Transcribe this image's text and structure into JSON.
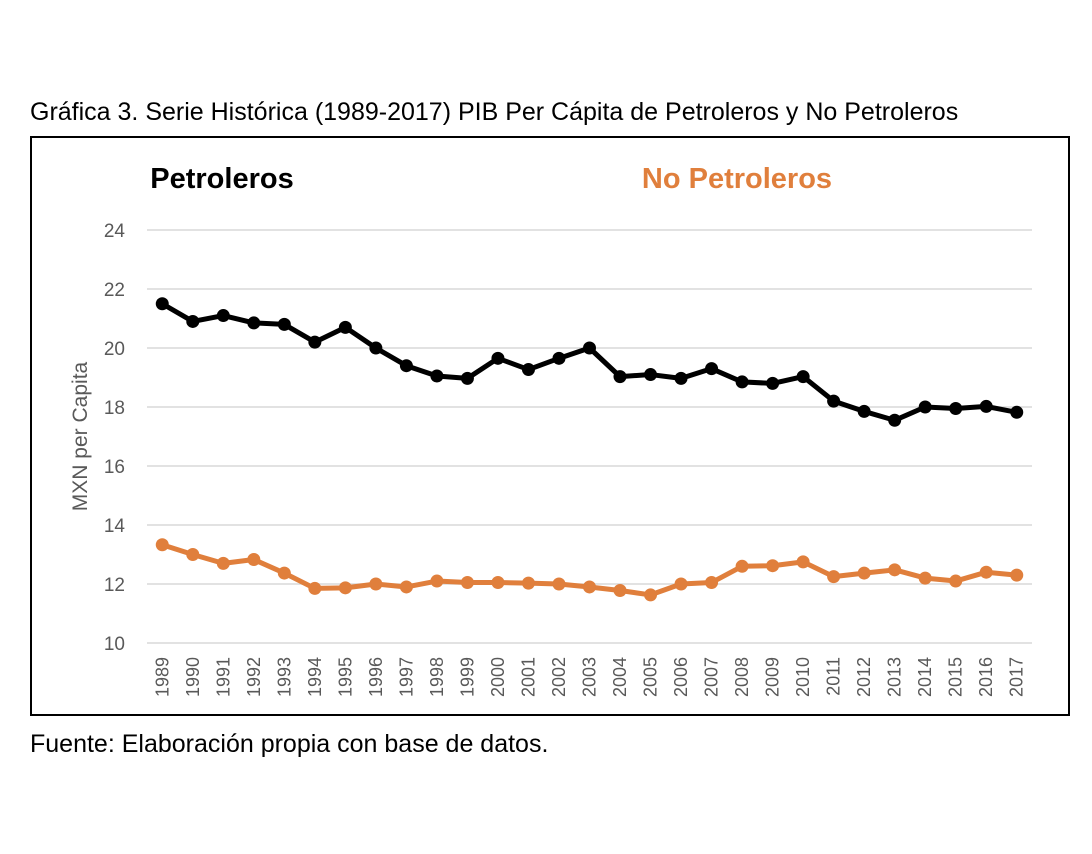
{
  "figure": {
    "title": "Gráfica 3. Serie Histórica (1989-2017) PIB Per Cápita de Petroleros y No Petroleros",
    "source": "Fuente: Elaboración propia con base de datos."
  },
  "chart_data": {
    "type": "line",
    "title": "",
    "xlabel": "",
    "ylabel": "MXN per Capita",
    "ylim": [
      10,
      24
    ],
    "yticks": [
      10,
      12,
      14,
      16,
      18,
      20,
      22,
      24
    ],
    "grid": true,
    "legend_position": "top",
    "categories": [
      "1989",
      "1990",
      "1991",
      "1992",
      "1993",
      "1994",
      "1995",
      "1996",
      "1997",
      "1998",
      "1999",
      "2000",
      "2001",
      "2002",
      "2003",
      "2004",
      "2005",
      "2006",
      "2007",
      "2008",
      "2009",
      "2010",
      "2011",
      "2012",
      "2013",
      "2014",
      "2015",
      "2016",
      "2017"
    ],
    "series": [
      {
        "name": "Petroleros",
        "color": "#000000",
        "values": [
          21.5,
          20.9,
          21.1,
          20.85,
          20.8,
          20.2,
          20.7,
          20.0,
          19.4,
          19.05,
          18.97,
          19.65,
          19.27,
          19.65,
          20.0,
          19.03,
          19.1,
          18.97,
          19.3,
          18.85,
          18.8,
          19.03,
          18.2,
          17.85,
          17.55,
          18.0,
          17.95,
          18.02,
          17.82
        ]
      },
      {
        "name": "No Petroleros",
        "color": "#E07F3C",
        "values": [
          13.33,
          13.0,
          12.7,
          12.83,
          12.37,
          11.85,
          11.87,
          12.0,
          11.9,
          12.1,
          12.05,
          12.05,
          12.03,
          12.0,
          11.9,
          11.78,
          11.63,
          12.0,
          12.05,
          12.6,
          12.62,
          12.75,
          12.25,
          12.37,
          12.48,
          12.2,
          12.1,
          12.4,
          12.3
        ]
      }
    ]
  }
}
